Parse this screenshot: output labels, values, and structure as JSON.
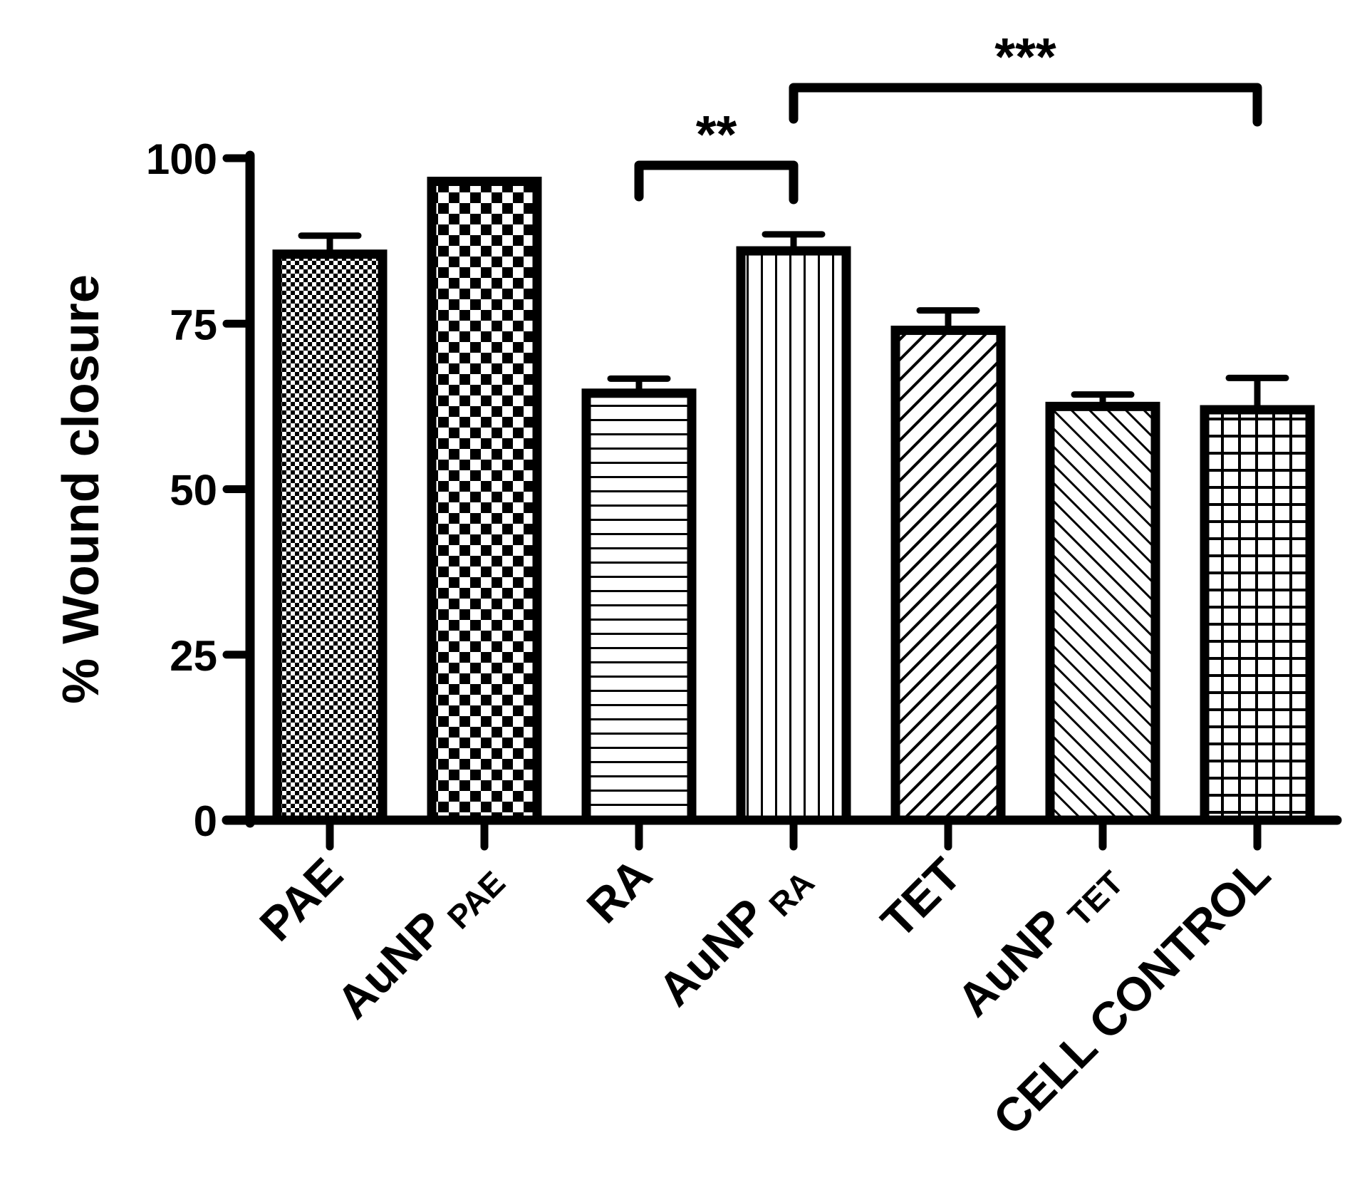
{
  "chart_data": {
    "type": "bar",
    "ylabel": "% Wound closure",
    "ylim": [
      0,
      100
    ],
    "yticks": [
      0,
      25,
      50,
      75,
      100
    ],
    "categories": [
      {
        "main": "PAE",
        "sub": ""
      },
      {
        "main": "AuNP",
        "sub": "PAE"
      },
      {
        "main": "RA",
        "sub": ""
      },
      {
        "main": "AuNP",
        "sub": "RA"
      },
      {
        "main": "TET",
        "sub": ""
      },
      {
        "main": "AuNP",
        "sub": "TET"
      },
      {
        "main": "CELL CONTROL",
        "sub": ""
      }
    ],
    "values": [
      85.5,
      96.5,
      64.5,
      86.0,
      74.0,
      62.5,
      62.0
    ],
    "errors": [
      2.8,
      0.0,
      2.2,
      2.5,
      3.0,
      1.8,
      4.8
    ],
    "patterns": [
      "fine-checker",
      "checker",
      "horizontal-lines",
      "vertical-lines",
      "diagonal-up",
      "diagonal-down",
      "grid"
    ],
    "significance": [
      {
        "from": 2,
        "to": 3,
        "label": "**"
      },
      {
        "from": 3,
        "to": 6,
        "label": "***"
      }
    ]
  }
}
